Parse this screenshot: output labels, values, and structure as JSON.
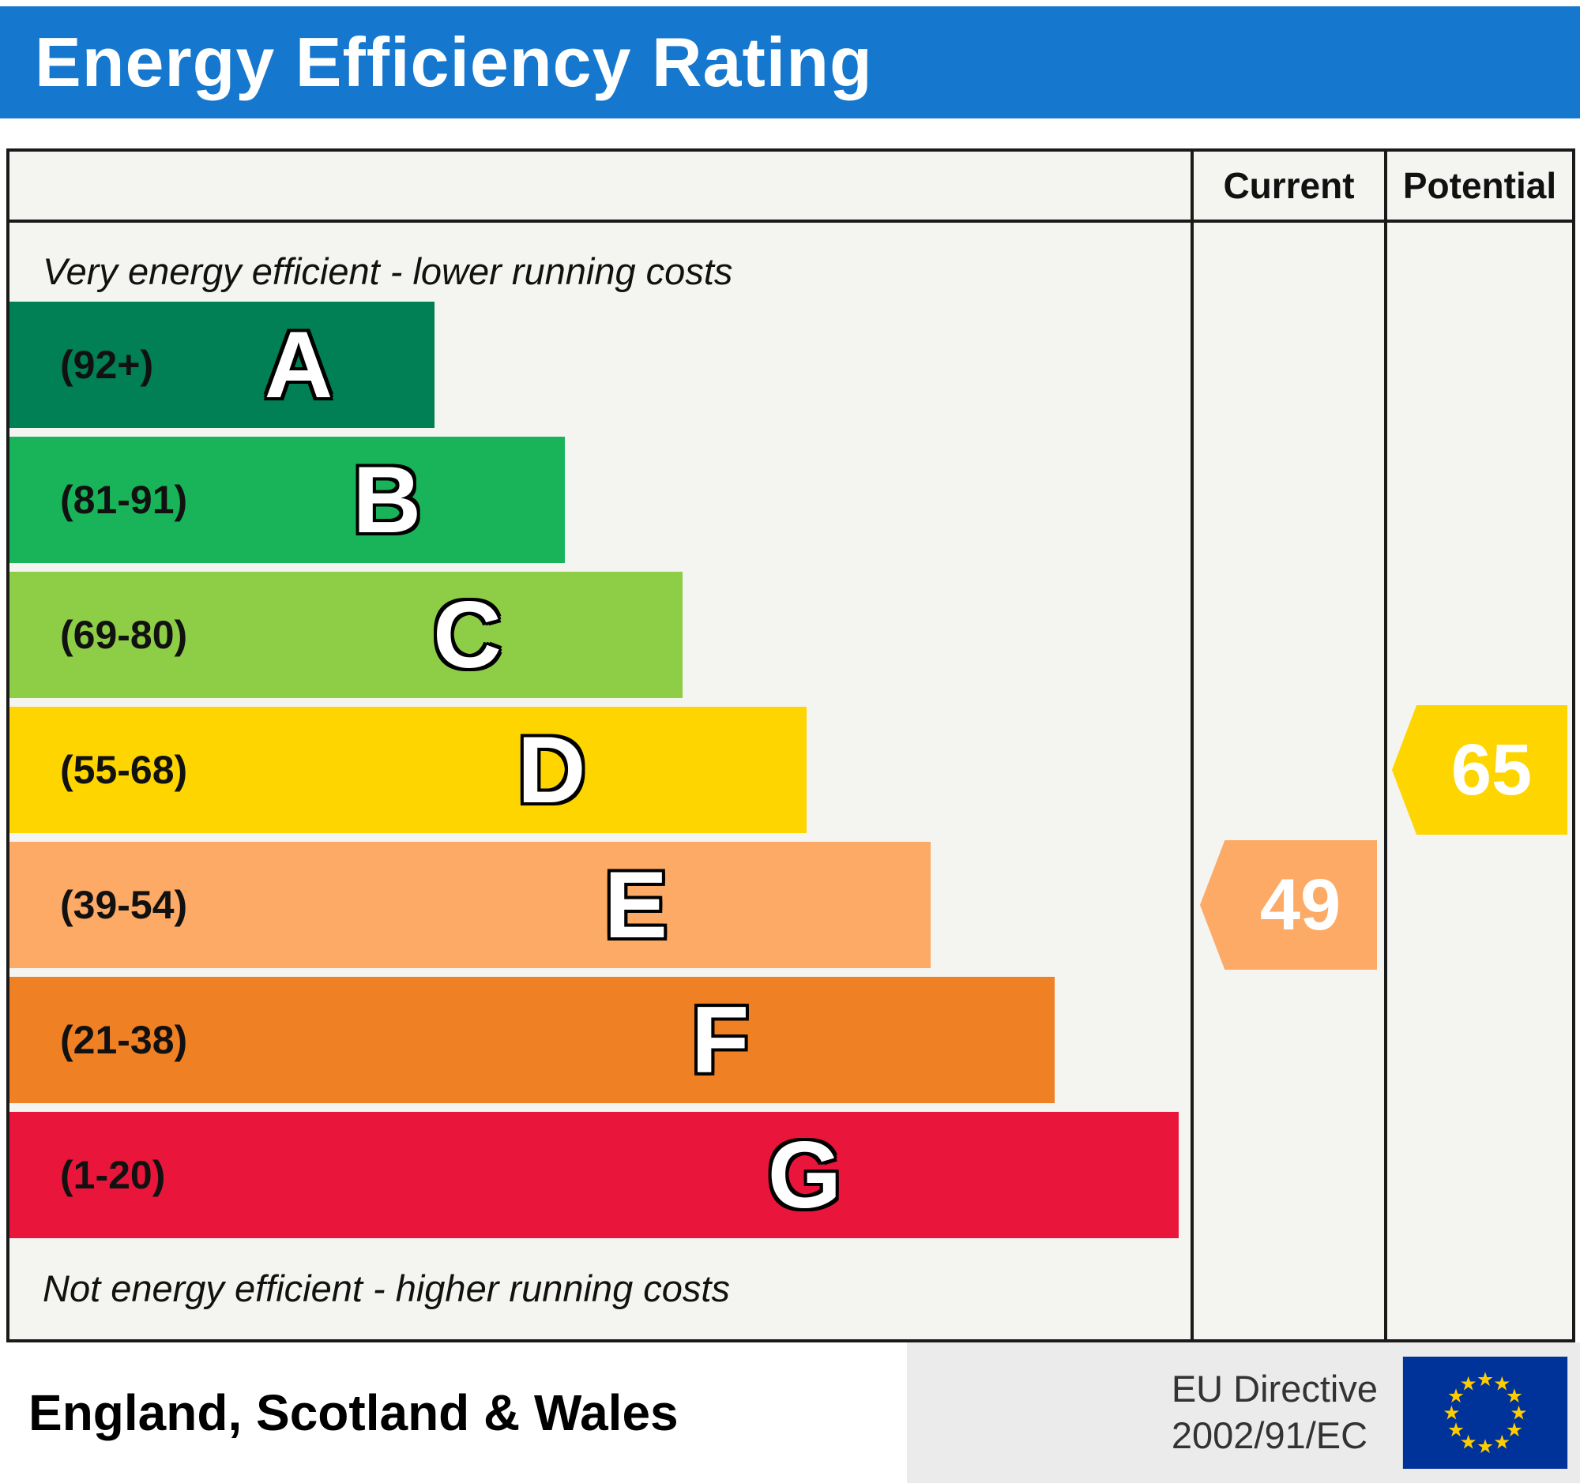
{
  "header": {
    "title": "Energy Efficiency Rating",
    "banner_color": "#1577cd"
  },
  "columns": {
    "current": "Current",
    "potential": "Potential"
  },
  "notes": {
    "top": "Very energy efficient - lower running costs",
    "bottom": "Not energy efficient - higher running costs"
  },
  "footer": {
    "region": "England, Scotland & Wales",
    "directive_line1": "EU Directive",
    "directive_line2": "2002/91/EC",
    "flag_colors": {
      "field": "#003399",
      "stars": "#ffcc00"
    }
  },
  "chart_data": {
    "type": "bar",
    "title": "Energy Efficiency Rating",
    "categories": [
      "A",
      "B",
      "C",
      "D",
      "E",
      "F",
      "G"
    ],
    "band_ranges": [
      "(92+)",
      "(81-91)",
      "(69-80)",
      "(55-68)",
      "(39-54)",
      "(21-38)",
      "(1-20)"
    ],
    "band_colors": [
      "#008054",
      "#19b459",
      "#8dce46",
      "#ffd500",
      "#fcaa65",
      "#ef8023",
      "#e9153b"
    ],
    "bar_width_pct": [
      36,
      47,
      57,
      67.5,
      78,
      88.5,
      99
    ],
    "current": {
      "value": 49,
      "band": "E",
      "color": "#fcaa65"
    },
    "potential": {
      "value": 65,
      "band": "D",
      "color": "#ffd500"
    },
    "legend_top": "Very energy efficient - lower running costs",
    "legend_bottom": "Not energy efficient - higher running costs",
    "column_headers": [
      "Current",
      "Potential"
    ]
  }
}
